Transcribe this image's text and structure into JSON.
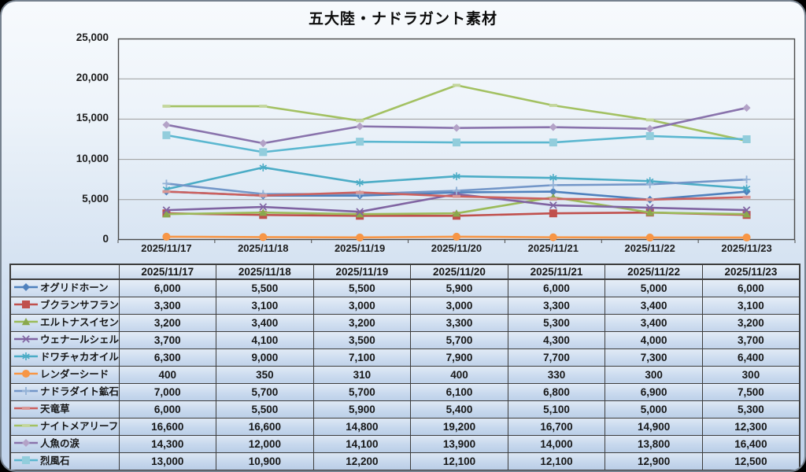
{
  "window": {
    "title": "五大陸・ナドラガント素材"
  },
  "chart_data": {
    "type": "line",
    "title": "五大陸・ナドラガント素材",
    "x": [
      "2025/11/17",
      "2025/11/18",
      "2025/11/19",
      "2025/11/20",
      "2025/11/21",
      "2025/11/22",
      "2025/11/23"
    ],
    "series": [
      {
        "name": "オグリドホーン",
        "values": [
          6000,
          5500,
          5500,
          5900,
          6000,
          5000,
          6000
        ],
        "color": "#4F81BD",
        "marker": "diamond",
        "marker_color": "#4F81BD"
      },
      {
        "name": "ブクランサフラン",
        "values": [
          3300,
          3100,
          3000,
          3000,
          3300,
          3400,
          3100
        ],
        "color": "#C0504D",
        "marker": "square",
        "marker_color": "#C0504D"
      },
      {
        "name": "エルトナスイセン",
        "values": [
          3200,
          3400,
          3200,
          3300,
          5300,
          3400,
          3200
        ],
        "color": "#9BBB59",
        "marker": "triangle",
        "marker_color": "#8aa84e"
      },
      {
        "name": "ウェナールシェル",
        "values": [
          3700,
          4100,
          3500,
          5700,
          4300,
          4000,
          3700
        ],
        "color": "#8064A2",
        "marker": "x",
        "marker_color": "#8064A2"
      },
      {
        "name": "ドワチャカオイル",
        "values": [
          6300,
          9000,
          7100,
          7900,
          7700,
          7300,
          6400
        ],
        "color": "#4BACC6",
        "marker": "asterisk",
        "marker_color": "#4BACC6"
      },
      {
        "name": "レンダーシード",
        "values": [
          400,
          350,
          310,
          400,
          330,
          300,
          300
        ],
        "color": "#F79646",
        "marker": "circle",
        "marker_color": "#F79646"
      },
      {
        "name": "ナドラダイト鉱石",
        "values": [
          7000,
          5700,
          5700,
          6100,
          6800,
          6900,
          7500
        ],
        "color": "#7396C8",
        "marker": "plus",
        "marker_color": "#95B3D7"
      },
      {
        "name": "天竜草",
        "values": [
          6000,
          5500,
          5900,
          5400,
          5100,
          5000,
          5300
        ],
        "color": "#CC615F",
        "marker": "dash",
        "marker_color": "#D99694"
      },
      {
        "name": "ナイトメアリーフ",
        "values": [
          16600,
          16600,
          14800,
          19200,
          16700,
          14900,
          12300
        ],
        "color": "#A3C162",
        "marker": "dash",
        "marker_color": "#C3D69B"
      },
      {
        "name": "人魚の涙",
        "values": [
          14300,
          12000,
          14100,
          13900,
          14000,
          13800,
          16400
        ],
        "color": "#8973AC",
        "marker": "diamond",
        "marker_color": "#B3A2C7"
      },
      {
        "name": "烈風石",
        "values": [
          13000,
          10900,
          12200,
          12100,
          12100,
          12900,
          12500
        ],
        "color": "#5BB7D0",
        "marker": "square",
        "marker_color": "#92CDDC"
      }
    ],
    "ylim": [
      0,
      25000
    ],
    "ytick_interval": 5000,
    "ytick_labels": [
      "0",
      "5,000",
      "10,000",
      "15,000",
      "20,000",
      "25,000"
    ],
    "grid": true,
    "grid_color": "#9b9b9b",
    "axis_color": "#4a4a4a",
    "legend_position": "table-first-column"
  }
}
